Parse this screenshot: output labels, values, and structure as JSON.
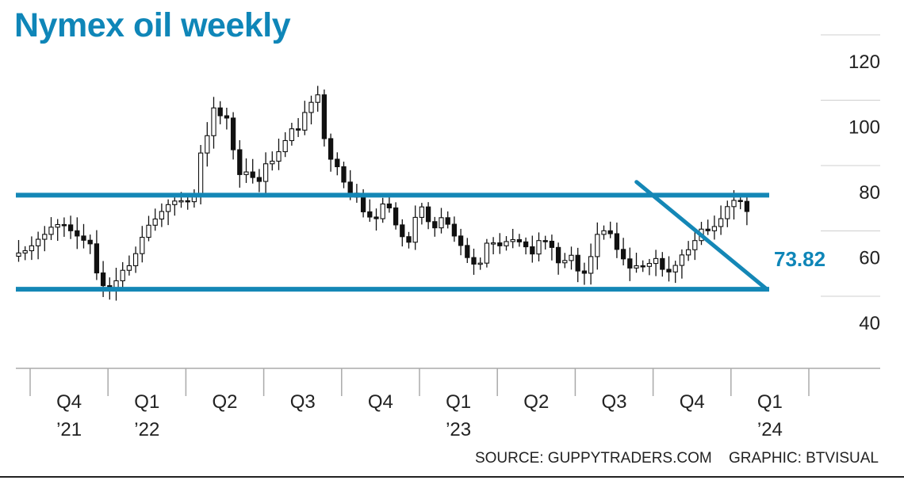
{
  "chart_data": {
    "type": "candlestick",
    "title": "Nymex oil weekly",
    "price_label": "73.82",
    "y_ticks": [
      "120",
      "100",
      "80",
      "60",
      "40"
    ],
    "ylim": [
      35,
      130
    ],
    "grid": "horizontal",
    "x_groups": [
      {
        "q": "Q4",
        "y": "’21"
      },
      {
        "q": "Q1",
        "y": "’22"
      },
      {
        "q": "Q2",
        "y": ""
      },
      {
        "q": "Q3",
        "y": ""
      },
      {
        "q": "Q4",
        "y": ""
      },
      {
        "q": "Q1",
        "y": "’23"
      },
      {
        "q": "Q2",
        "y": ""
      },
      {
        "q": "Q3",
        "y": ""
      },
      {
        "q": "Q4",
        "y": ""
      },
      {
        "q": "Q1",
        "y": "’24"
      }
    ],
    "week_count": 113,
    "closes": [
      61.0,
      61.7,
      63.2,
      65.2,
      66.7,
      68.9,
      69.7,
      69.6,
      67.8,
      66.2,
      64.9,
      63.8,
      54.9,
      51.0,
      49.6,
      52.5,
      55.7,
      57.1,
      60.8,
      65.8,
      69.5,
      71.4,
      73.7,
      75.8,
      76.9,
      77.0,
      76.7,
      78.8,
      91.6,
      96.9,
      105.4,
      103.0,
      102.3,
      92.6,
      85.0,
      85.8,
      84.1,
      82.9,
      88.3,
      89.1,
      92.0,
      95.4,
      99.0,
      98.6,
      104.0,
      107.1,
      109.4,
      96.0,
      89.7,
      87.4,
      82.7,
      79.3,
      78.1,
      73.6,
      72.0,
      71.5,
      76.0,
      74.8,
      69.6,
      66.0,
      64.3,
      71.9,
      75.1,
      70.6,
      68.7,
      71.8,
      69.8,
      66.2,
      63.3,
      59.6,
      57.6,
      57.9,
      64.0,
      64.1,
      63.2,
      64.5,
      65.1,
      64.4,
      62.9,
      60.7,
      64.8,
      64.6,
      62.7,
      58.0,
      58.7,
      60.3,
      55.5,
      54.8,
      59.9,
      66.7,
      67.8,
      66.9,
      62.1,
      59.2,
      56.4,
      57.1,
      56.9,
      57.8,
      59.3,
      56.0,
      55.2,
      57.2,
      60.4,
      62.0,
      64.8,
      68.3,
      67.8,
      69.1,
      71.5,
      75.2,
      77.1,
      76.8,
      73.7
    ],
    "horizontal_levels": [
      78.7,
      49.9
    ],
    "trendline": [
      [
        96,
        80.8
      ],
      [
        114,
        51.5
      ]
    ],
    "x_label": "",
    "y_label": ""
  },
  "source": "SOURCE: GUPPYTRADERS.COM",
  "graphic": "GRAPHIC: BTVISUAL",
  "colors": {
    "title": "#0f86b8",
    "lines": "#1487b6",
    "candle": "#111111",
    "grid": "#cfcfcf"
  }
}
